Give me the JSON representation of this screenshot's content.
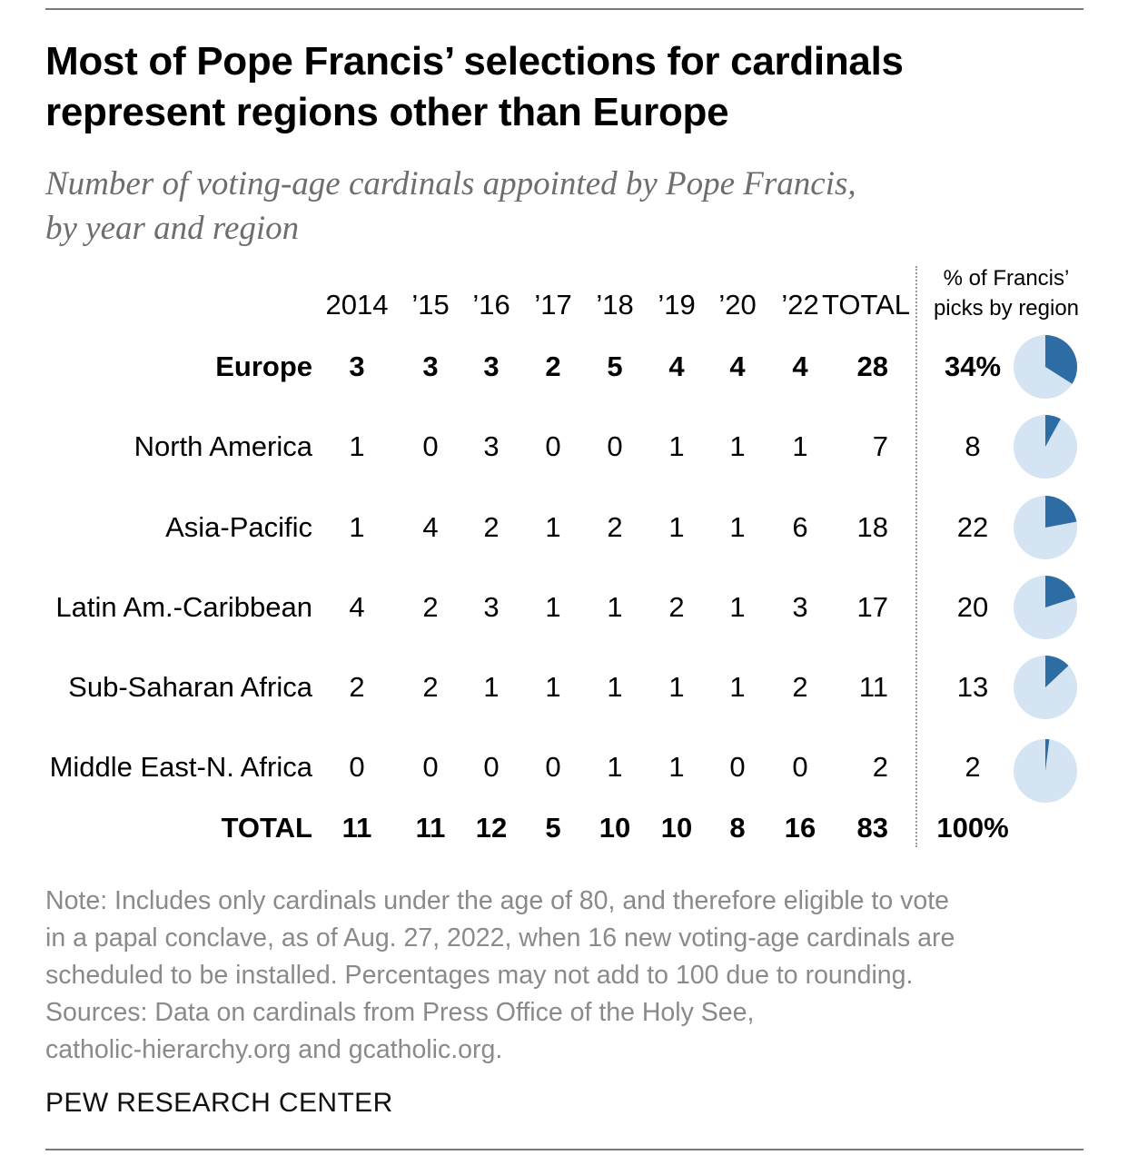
{
  "title_lines": [
    "Most of Pope Francis’ selections for cardinals",
    "represent regions other than Europe"
  ],
  "subtitle_lines": [
    "Number of voting-age cardinals appointed by Pope Francis,",
    "by year and region"
  ],
  "pct_header_lines": [
    "% of Francis’",
    "picks by region"
  ],
  "colors": {
    "pie_fill": "#2e6ca4",
    "pie_background": "#d4e4f2",
    "note_text": "#8a8a8a",
    "subtitle_text": "#6e6e6e"
  },
  "chart_data": {
    "type": "table",
    "title": "Most of Pope Francis’ selections for cardinals represent regions other than Europe",
    "subtitle": "Number of voting-age cardinals appointed by Pope Francis, by year and region",
    "columns": [
      "2014",
      "’15",
      "’16",
      "’17",
      "’18",
      "’19",
      "’20",
      "’22",
      "TOTAL"
    ],
    "pct_column": "% of Francis’ picks by region",
    "rows": [
      {
        "region": "Europe",
        "values": [
          "3",
          "3",
          "3",
          "2",
          "5",
          "4",
          "4",
          "4",
          "28"
        ],
        "pct_label": "34%",
        "pct": 34
      },
      {
        "region": "North America",
        "values": [
          "1",
          "0",
          "3",
          "0",
          "0",
          "1",
          "1",
          "1",
          "7"
        ],
        "pct_label": "8",
        "pct": 8
      },
      {
        "region": "Asia-Pacific",
        "values": [
          "1",
          "4",
          "2",
          "1",
          "2",
          "1",
          "1",
          "6",
          "18"
        ],
        "pct_label": "22",
        "pct": 22
      },
      {
        "region": "Latin Am.-Caribbean",
        "values": [
          "4",
          "2",
          "3",
          "1",
          "1",
          "2",
          "1",
          "3",
          "17"
        ],
        "pct_label": "20",
        "pct": 20
      },
      {
        "region": "Sub-Saharan Africa",
        "values": [
          "2",
          "2",
          "1",
          "1",
          "1",
          "1",
          "1",
          "2",
          "11"
        ],
        "pct_label": "13",
        "pct": 13
      },
      {
        "region": "Middle East-N. Africa",
        "values": [
          "0",
          "0",
          "0",
          "0",
          "1",
          "1",
          "0",
          "0",
          "2"
        ],
        "pct_label": "2",
        "pct": 2
      }
    ],
    "total_row": {
      "label": "TOTAL",
      "values": [
        "11",
        "11",
        "12",
        "5",
        "10",
        "10",
        "8",
        "16",
        "83"
      ],
      "pct_label": "100%"
    }
  },
  "note_lines": [
    "Note: Includes only cardinals under the age of 80, and therefore eligible to vote",
    "in a papal conclave, as of Aug. 27, 2022, when 16 new voting-age cardinals are",
    "scheduled to be installed. Percentages may not add to 100 due to rounding.",
    "Sources: Data on cardinals from Press Office of the Holy See,",
    "catholic-hierarchy.org and gcatholic.org."
  ],
  "source_org": "PEW RESEARCH CENTER"
}
